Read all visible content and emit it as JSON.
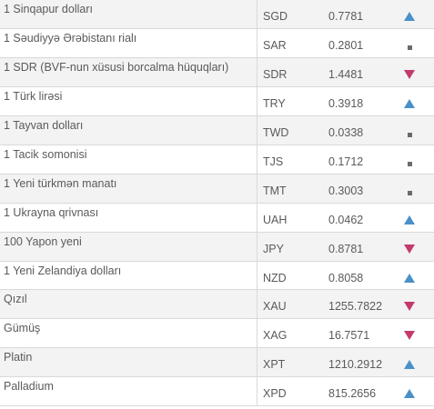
{
  "rates": [
    {
      "name": "1 Sinqapur dolları",
      "code": "SGD",
      "rate": "0.7781",
      "trend": "up"
    },
    {
      "name": "1 Səudiyyə Ərəbistanı rialı",
      "code": "SAR",
      "rate": "0.2801",
      "trend": "same"
    },
    {
      "name": "1 SDR (BVF-nun xüsusi borcalma hüquqları)",
      "code": "SDR",
      "rate": "1.4481",
      "trend": "down"
    },
    {
      "name": "1 Türk lirəsi",
      "code": "TRY",
      "rate": "0.3918",
      "trend": "up"
    },
    {
      "name": "1 Tayvan dolları",
      "code": "TWD",
      "rate": "0.0338",
      "trend": "same"
    },
    {
      "name": "1 Tacik somonisi",
      "code": "TJS",
      "rate": "0.1712",
      "trend": "same"
    },
    {
      "name": "1 Yeni türkmən manatı",
      "code": "TMT",
      "rate": "0.3003",
      "trend": "same"
    },
    {
      "name": "1 Ukrayna qrivnası",
      "code": "UAH",
      "rate": "0.0462",
      "trend": "up"
    },
    {
      "name": "100 Yapon yeni",
      "code": "JPY",
      "rate": "0.8781",
      "trend": "down"
    },
    {
      "name": "1 Yeni Zelandiya dolları",
      "code": "NZD",
      "rate": "0.8058",
      "trend": "up"
    },
    {
      "name": "Qızıl",
      "code": "XAU",
      "rate": "1255.7822",
      "trend": "down"
    },
    {
      "name": "Gümüş",
      "code": "XAG",
      "rate": "16.7571",
      "trend": "down"
    },
    {
      "name": "Platin",
      "code": "XPT",
      "rate": "1210.2912",
      "trend": "up"
    },
    {
      "name": "Palladium",
      "code": "XPD",
      "rate": "815.2656",
      "trend": "up"
    }
  ],
  "trend_icons": {
    "up": "arrow-up-icon",
    "down": "arrow-down-icon",
    "same": "no-change-icon"
  },
  "colors": {
    "up": "#4a90c8",
    "down": "#c23a6e",
    "same": "#6b6b6b"
  }
}
